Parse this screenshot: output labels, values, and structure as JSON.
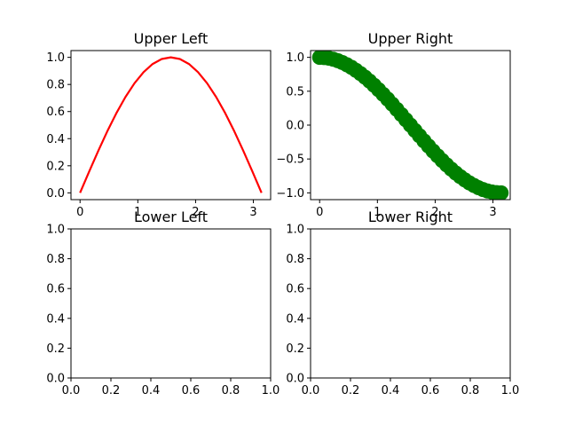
{
  "colors": {
    "upper_left_line": "#ff0000",
    "upper_right_markers": "#008000",
    "axes_edge": "#000000",
    "background": "#ffffff"
  },
  "chart_data": [
    {
      "id": "upper-left",
      "type": "line",
      "title": "Upper Left",
      "xlabel": "",
      "ylabel": "",
      "xlim": [
        -0.157,
        3.299
      ],
      "ylim": [
        -0.05,
        1.05
      ],
      "grid": false,
      "xticks": [
        0,
        1,
        2,
        3
      ],
      "xtick_labels": [
        "0",
        "1",
        "2",
        "3"
      ],
      "yticks": [
        0.0,
        0.2,
        0.4,
        0.6,
        0.8,
        1.0
      ],
      "ytick_labels": [
        "0.0",
        "0.2",
        "0.4",
        "0.6",
        "0.8",
        "1.0"
      ],
      "series": [
        {
          "color": "#ff0000",
          "x": [
            0,
            0.1571,
            0.3142,
            0.4712,
            0.6283,
            0.7854,
            0.9425,
            1.0996,
            1.2566,
            1.4137,
            1.5708,
            1.7279,
            1.885,
            2.042,
            2.1991,
            2.3562,
            2.5133,
            2.6704,
            2.8274,
            2.9845,
            3.1416
          ],
          "y": [
            0,
            0.1564,
            0.309,
            0.454,
            0.5878,
            0.7071,
            0.809,
            0.891,
            0.9511,
            0.9877,
            1.0,
            0.9877,
            0.9511,
            0.891,
            0.809,
            0.7071,
            0.5878,
            0.454,
            0.309,
            0.1564,
            0
          ]
        }
      ]
    },
    {
      "id": "upper-right",
      "type": "scatter",
      "title": "Upper Right",
      "xlabel": "",
      "ylabel": "",
      "xlim": [
        -0.157,
        3.299
      ],
      "ylim": [
        -1.1,
        1.1
      ],
      "grid": false,
      "xticks": [
        0,
        1,
        2,
        3
      ],
      "xtick_labels": [
        "0",
        "1",
        "2",
        "3"
      ],
      "yticks": [
        -1.0,
        -0.5,
        0.0,
        0.5,
        1.0
      ],
      "ytick_labels": [
        "−1.0",
        "−0.5",
        "0.0",
        "0.5",
        "1.0"
      ],
      "series": [
        {
          "color": "#008000",
          "x": [
            0,
            0.0785,
            0.1571,
            0.2356,
            0.3142,
            0.3927,
            0.4712,
            0.5498,
            0.6283,
            0.7069,
            0.7854,
            0.8639,
            0.9425,
            1.021,
            1.0996,
            1.1781,
            1.2566,
            1.3352,
            1.4137,
            1.4923,
            1.5708,
            1.6493,
            1.7279,
            1.8064,
            1.885,
            1.9635,
            2.042,
            2.1206,
            2.1991,
            2.2777,
            2.3562,
            2.4347,
            2.5133,
            2.5918,
            2.6704,
            2.7489,
            2.8274,
            2.906,
            2.9845,
            3.0631,
            3.1416
          ],
          "y": [
            1.0,
            0.9969,
            0.9877,
            0.9724,
            0.9511,
            0.9239,
            0.891,
            0.8526,
            0.809,
            0.7604,
            0.7071,
            0.6494,
            0.5878,
            0.5225,
            0.454,
            0.3827,
            0.309,
            0.2334,
            0.1564,
            0.0785,
            0.0,
            -0.0785,
            -0.1564,
            -0.2334,
            -0.309,
            -0.3827,
            -0.454,
            -0.5225,
            -0.5878,
            -0.6494,
            -0.7071,
            -0.7604,
            -0.809,
            -0.8526,
            -0.891,
            -0.9239,
            -0.9511,
            -0.9724,
            -0.9877,
            -0.9969,
            -1.0
          ]
        }
      ]
    },
    {
      "id": "lower-left",
      "type": "line",
      "title": "Lower Left",
      "xlabel": "",
      "ylabel": "",
      "xlim": [
        0,
        1
      ],
      "ylim": [
        0,
        1
      ],
      "grid": false,
      "xticks": [
        0.0,
        0.2,
        0.4,
        0.6,
        0.8,
        1.0
      ],
      "xtick_labels": [
        "0.0",
        "0.2",
        "0.4",
        "0.6",
        "0.8",
        "1.0"
      ],
      "yticks": [
        0.0,
        0.2,
        0.4,
        0.6,
        0.8,
        1.0
      ],
      "ytick_labels": [
        "0.0",
        "0.2",
        "0.4",
        "0.6",
        "0.8",
        "1.0"
      ],
      "series": []
    },
    {
      "id": "lower-right",
      "type": "line",
      "title": "Lower Right",
      "xlabel": "",
      "ylabel": "",
      "xlim": [
        0,
        1
      ],
      "ylim": [
        0,
        1
      ],
      "grid": false,
      "xticks": [
        0.0,
        0.2,
        0.4,
        0.6,
        0.8,
        1.0
      ],
      "xtick_labels": [
        "0.0",
        "0.2",
        "0.4",
        "0.6",
        "0.8",
        "1.0"
      ],
      "yticks": [
        0.0,
        0.2,
        0.4,
        0.6,
        0.8,
        1.0
      ],
      "ytick_labels": [
        "0.0",
        "0.2",
        "0.4",
        "0.6",
        "0.8",
        "1.0"
      ],
      "series": []
    }
  ]
}
